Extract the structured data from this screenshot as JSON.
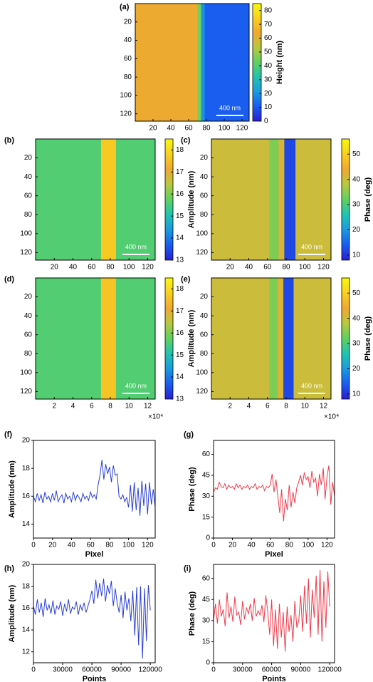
{
  "chart_data": [
    {
      "type": "heatmap",
      "panel_label": "(a)",
      "xlim": [
        0,
        128
      ],
      "ylim": [
        0,
        128
      ],
      "y_inverted": true,
      "xticks": [
        20,
        40,
        60,
        80,
        100,
        120
      ],
      "yticks": [
        20,
        40,
        60,
        80,
        100,
        120
      ],
      "xbins": [
        0,
        70,
        74,
        78,
        128
      ],
      "values": [
        63,
        45,
        20,
        11
      ],
      "clim": [
        0,
        85
      ],
      "cticks": [
        0,
        10,
        20,
        30,
        40,
        50,
        60,
        70,
        80
      ],
      "colorbar_label": "Height (nm)",
      "scale_bar": "400 nm",
      "colormap": [
        "#2a1fd0",
        "#1a5cf0",
        "#1a9be0",
        "#20c4b0",
        "#60d060",
        "#b8c840",
        "#f0a830",
        "#f8d020",
        "#f8f810"
      ]
    },
    {
      "type": "heatmap",
      "panel_label": "(b)",
      "xlim": [
        0,
        128
      ],
      "ylim": [
        0,
        128
      ],
      "y_inverted": true,
      "xticks": [
        20,
        40,
        60,
        80,
        100,
        120
      ],
      "yticks": [
        20,
        40,
        60,
        80,
        100,
        120
      ],
      "xbins": [
        0,
        70,
        86,
        128
      ],
      "values": [
        15.6,
        17.7,
        15.6
      ],
      "clim": [
        13,
        18.5
      ],
      "cticks": [
        13,
        14,
        15,
        16,
        17,
        18
      ],
      "colorbar_label": "Amplitude (nm)",
      "scale_bar": "400 nm",
      "colormap": [
        "#2a1fd0",
        "#1a5cf0",
        "#1a9be0",
        "#20c4b0",
        "#60d060",
        "#b8c840",
        "#f0a830",
        "#f8d020",
        "#f8f810"
      ]
    },
    {
      "type": "heatmap",
      "panel_label": "(c)",
      "xlim": [
        0,
        128
      ],
      "ylim": [
        0,
        128
      ],
      "y_inverted": true,
      "xticks": [
        20,
        40,
        60,
        80,
        100,
        120
      ],
      "yticks": [
        20,
        40,
        60,
        80,
        100,
        120
      ],
      "xbins": [
        0,
        62,
        72,
        78,
        90,
        128
      ],
      "values": [
        40,
        34,
        42,
        12,
        40
      ],
      "clim": [
        8,
        56
      ],
      "cticks": [
        10,
        20,
        30,
        40,
        50
      ],
      "colorbar_label": "Phase (deg)",
      "scale_bar": "400 nm",
      "colormap": [
        "#2a1fd0",
        "#1a5cf0",
        "#1a9be0",
        "#20c4b0",
        "#60d060",
        "#b8c840",
        "#f0a830",
        "#f8d020",
        "#f8f810"
      ]
    },
    {
      "type": "heatmap",
      "panel_label": "(d)",
      "xlim": [
        0,
        12.8
      ],
      "ylim": [
        0,
        128
      ],
      "y_inverted": true,
      "xticks": [
        2,
        4,
        6,
        8,
        10,
        12
      ],
      "yticks": [
        20,
        40,
        60,
        80,
        100,
        120
      ],
      "x_multiplier": "×10⁴",
      "xbins": [
        0,
        7,
        8.6,
        12.8
      ],
      "values": [
        15.6,
        17.6,
        15.6
      ],
      "clim": [
        13,
        18.5
      ],
      "cticks": [
        13,
        14,
        15,
        16,
        17,
        18
      ],
      "colorbar_label": "Amplitude (nm)",
      "scale_bar": "400 nm",
      "colormap": [
        "#2a1fd0",
        "#1a5cf0",
        "#1a9be0",
        "#20c4b0",
        "#60d060",
        "#b8c840",
        "#f0a830",
        "#f8d020",
        "#f8f810"
      ]
    },
    {
      "type": "heatmap",
      "panel_label": "(e)",
      "xlim": [
        0,
        12.8
      ],
      "ylim": [
        0,
        128
      ],
      "y_inverted": true,
      "xticks": [
        2,
        4,
        6,
        8,
        10,
        12
      ],
      "yticks": [
        20,
        40,
        60,
        80,
        100,
        120
      ],
      "x_multiplier": "×10⁴",
      "xbins": [
        0,
        6.2,
        7.1,
        7.7,
        8.8,
        12.8
      ],
      "values": [
        40,
        34,
        42,
        12,
        40
      ],
      "clim": [
        8,
        56
      ],
      "cticks": [
        10,
        20,
        30,
        40,
        50
      ],
      "colorbar_label": "Phase (deg)",
      "scale_bar": "400 nm",
      "colormap": [
        "#2a1fd0",
        "#1a5cf0",
        "#1a9be0",
        "#20c4b0",
        "#60d060",
        "#b8c840",
        "#f0a830",
        "#f8d020",
        "#f8f810"
      ]
    },
    {
      "type": "line",
      "panel_label": "(f)",
      "x_label": "Pixel",
      "y_label": "Amplitude (nm)",
      "color": "#2a3fd6",
      "xlim": [
        0,
        128
      ],
      "ylim": [
        13,
        20
      ],
      "xticks": [
        0,
        20,
        40,
        60,
        80,
        100,
        120
      ],
      "yticks": [
        14,
        16,
        18,
        20
      ],
      "x": [
        0,
        2,
        4,
        6,
        8,
        10,
        12,
        14,
        16,
        18,
        20,
        22,
        24,
        26,
        28,
        30,
        32,
        34,
        36,
        38,
        40,
        42,
        44,
        46,
        48,
        50,
        52,
        54,
        56,
        58,
        60,
        62,
        64,
        66,
        68,
        70,
        72,
        74,
        76,
        78,
        80,
        82,
        84,
        86,
        88,
        90,
        92,
        94,
        96,
        98,
        100,
        102,
        104,
        106,
        108,
        110,
        112,
        114,
        116,
        118,
        120,
        122,
        124,
        126,
        128
      ],
      "values": [
        16,
        15.6,
        16.2,
        15.7,
        16.1,
        15.5,
        16.3,
        15.8,
        16.0,
        15.6,
        16.2,
        15.7,
        16.4,
        15.6,
        15.9,
        16.1,
        15.5,
        16.2,
        15.8,
        16.0,
        15.6,
        16.3,
        15.7,
        16.1,
        15.9,
        15.6,
        16.2,
        15.8,
        16.0,
        15.7,
        16.3,
        15.9,
        16.1,
        15.8,
        16.8,
        17.5,
        18.6,
        17.2,
        18.3,
        17.6,
        18.1,
        17.0,
        18.2,
        17.5,
        17.6,
        16.0,
        15.8,
        16.1,
        15.6,
        15.9,
        15.2,
        16.8,
        14.9,
        17.0,
        15.0,
        16.6,
        14.6,
        17.1,
        15.3,
        16.9,
        14.7,
        17.0,
        15.4,
        16.5,
        15.2
      ]
    },
    {
      "type": "line",
      "panel_label": "(g)",
      "x_label": "Pixel",
      "y_label": "Phase (deg)",
      "color": "#f03a4a",
      "xlim": [
        0,
        128
      ],
      "ylim": [
        0,
        70
      ],
      "xticks": [
        0,
        20,
        40,
        60,
        80,
        100,
        120
      ],
      "yticks": [
        0,
        15,
        30,
        45,
        60
      ],
      "x": [
        0,
        2,
        4,
        6,
        8,
        10,
        12,
        14,
        16,
        18,
        20,
        22,
        24,
        26,
        28,
        30,
        32,
        34,
        36,
        38,
        40,
        42,
        44,
        46,
        48,
        50,
        52,
        54,
        56,
        58,
        60,
        62,
        64,
        66,
        68,
        70,
        72,
        74,
        76,
        78,
        80,
        82,
        84,
        86,
        88,
        90,
        92,
        94,
        96,
        98,
        100,
        102,
        104,
        106,
        108,
        110,
        112,
        114,
        116,
        118,
        120,
        122,
        124,
        126,
        128
      ],
      "values": [
        33,
        36,
        35,
        40,
        37,
        36,
        39,
        35,
        38,
        36,
        37,
        35,
        39,
        36,
        38,
        35,
        37,
        36,
        38,
        35,
        37,
        36,
        39,
        35,
        37,
        36,
        38,
        34,
        37,
        36,
        38,
        46,
        33,
        42,
        30,
        18,
        35,
        12,
        28,
        20,
        38,
        22,
        33,
        25,
        36,
        40,
        45,
        38,
        47,
        42,
        44,
        36,
        48,
        40,
        43,
        30,
        46,
        38,
        50,
        28,
        44,
        52,
        24,
        40,
        30
      ]
    },
    {
      "type": "line",
      "panel_label": "(h)",
      "x_label": "Points",
      "y_label": "Amplitude (nm)",
      "color": "#2a3fd6",
      "xlim": [
        0,
        125000
      ],
      "ylim": [
        11,
        20
      ],
      "xticks": [
        0,
        30000,
        60000,
        90000,
        120000
      ],
      "yticks": [
        12,
        14,
        16,
        18,
        20
      ],
      "x": [
        0,
        2000,
        4000,
        6000,
        8000,
        10000,
        12000,
        14000,
        16000,
        18000,
        20000,
        22000,
        24000,
        26000,
        28000,
        30000,
        32000,
        34000,
        36000,
        38000,
        40000,
        42000,
        44000,
        46000,
        48000,
        50000,
        52000,
        54000,
        56000,
        58000,
        60000,
        62000,
        64000,
        66000,
        68000,
        70000,
        72000,
        74000,
        76000,
        78000,
        80000,
        82000,
        84000,
        86000,
        88000,
        90000,
        92000,
        94000,
        96000,
        98000,
        100000,
        102000,
        104000,
        106000,
        108000,
        110000,
        112000,
        114000,
        116000,
        118000,
        120000
      ],
      "values": [
        16.2,
        15.4,
        16.8,
        15.6,
        16.5,
        15.2,
        16.9,
        15.8,
        16.3,
        15.5,
        16.7,
        15.4,
        16.2,
        15.9,
        16.6,
        15.3,
        16.4,
        15.7,
        16.8,
        15.5,
        16.1,
        15.9,
        16.6,
        15.4,
        16.3,
        15.8,
        16.5,
        15.6,
        16.2,
        16.8,
        17.6,
        16.4,
        18.6,
        16.9,
        18.3,
        17.1,
        18.7,
        16.6,
        18.1,
        17.3,
        18.5,
        16.2,
        17.8,
        16.5,
        15.6,
        17.2,
        15.1,
        17.5,
        15.8,
        16.9,
        14.8,
        17.6,
        13.5,
        17.9,
        12.6,
        18.0,
        11.4,
        17.8,
        13.0,
        18.1,
        15.8
      ]
    },
    {
      "type": "line",
      "panel_label": "(i)",
      "x_label": "Points",
      "y_label": "Phase (deg)",
      "color": "#f03a4a",
      "xlim": [
        0,
        125000
      ],
      "ylim": [
        0,
        70
      ],
      "xticks": [
        0,
        30000,
        60000,
        90000,
        120000
      ],
      "yticks": [
        0,
        15,
        30,
        45,
        60
      ],
      "x": [
        0,
        2000,
        4000,
        6000,
        8000,
        10000,
        12000,
        14000,
        16000,
        18000,
        20000,
        22000,
        24000,
        26000,
        28000,
        30000,
        32000,
        34000,
        36000,
        38000,
        40000,
        42000,
        44000,
        46000,
        48000,
        50000,
        52000,
        54000,
        56000,
        58000,
        60000,
        62000,
        64000,
        66000,
        68000,
        70000,
        72000,
        74000,
        76000,
        78000,
        80000,
        82000,
        84000,
        86000,
        88000,
        90000,
        92000,
        94000,
        96000,
        98000,
        100000,
        102000,
        104000,
        106000,
        108000,
        110000,
        112000,
        114000,
        116000,
        118000,
        120000
      ],
      "values": [
        30,
        42,
        28,
        45,
        33,
        38,
        26,
        50,
        32,
        40,
        29,
        47,
        34,
        36,
        27,
        44,
        31,
        39,
        35,
        42,
        30,
        46,
        33,
        37,
        34,
        41,
        29,
        48,
        36,
        20,
        45,
        12,
        38,
        10,
        42,
        18,
        36,
        8,
        40,
        22,
        34,
        15,
        44,
        25,
        30,
        48,
        22,
        55,
        28,
        60,
        18,
        52,
        32,
        62,
        20,
        66,
        15,
        58,
        25,
        65,
        40
      ]
    }
  ]
}
